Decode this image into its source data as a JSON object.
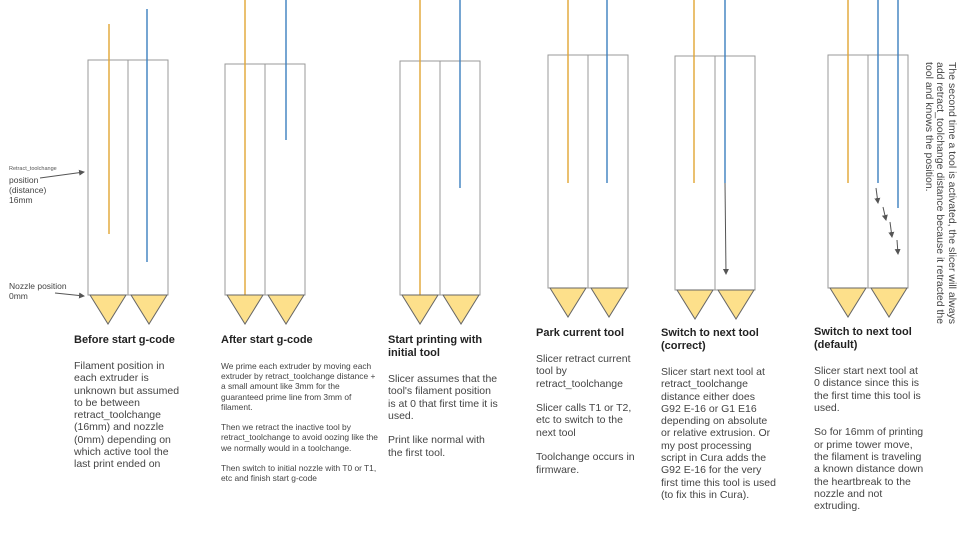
{
  "colors": {
    "outline": "#999999",
    "nozzle_fill": "#fde08b",
    "nozzle_stroke": "#666666",
    "filament_orange": "#e2a634",
    "filament_blue": "#3c7fbf",
    "arrow": "#555555"
  },
  "side_labels": {
    "retract_small": "Retract_toolchange",
    "retract_main": "position\n(distance)\n16mm",
    "nozzle_position": "Nozzle position\n0mm"
  },
  "steps": [
    {
      "title": "Before start g-code",
      "text": "Filament position in each extruder is unknown but assumed to be between retract_toolchange (16mm) and nozzle (0mm) depending on which active tool the last print ended on"
    },
    {
      "title": "After start g-code",
      "text": "We prime each extruder by moving each extruder by retract_toolchange distance + a small amount like 3mm for the guaranteed prime line from 3mm of filament.\n\nThen we retract the inactive tool by retract_toolchange to avoid oozing like the we normally would in a toolchange.\n\nThen switch to initial nozzle with T0 or T1, etc and finish start g-code"
    },
    {
      "title": "Start printing with initial tool",
      "text": "Slicer assumes that the tool's filament position is at 0 that first time it is used.\n\nPrint like normal with the first tool."
    },
    {
      "title": "Park current tool",
      "text": "Slicer retract current tool by retract_toolchange\n\nSlicer calls T1 or T2, etc to switch to the next tool\n\nToolchange occurs in firmware."
    },
    {
      "title": "Switch to next tool (correct)",
      "text": "Slicer start next tool at retract_toolchange distance either does G92 E-16 or G1 E16 depending on absolute or relative extrusion. Or my post processing script in Cura adds the G92 E-16 for the very first time this tool is used (to fix this in Cura)."
    },
    {
      "title": "Switch to next tool (default)",
      "text": "Slicer start next tool at 0 distance since this is the first time this tool is used.\n\nSo for 16mm of printing or prime tower move, the filament is traveling a known distance down the heartbreak to the nozzle and not extruding."
    }
  ],
  "side_note": "The second time a tool is activated, the slicer will always add retract_toolchange distance because it retracted the tool and knows the position."
}
